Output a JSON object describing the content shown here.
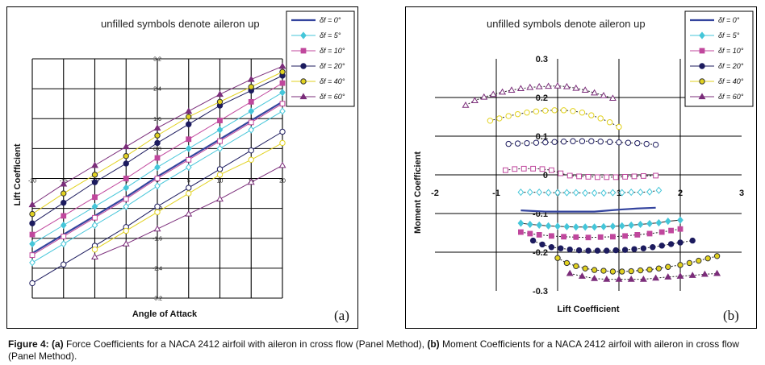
{
  "caption": {
    "lead": "Figure 4:",
    "a_tag": "(a)",
    "a_text": " Force Coefficients for a NACA 2412 airfoil with aileron in cross flow (Panel Method), ",
    "b_tag": "(b)",
    "b_text": " Moment Coefficients for a NACA 2412 airfoil with aileron in cross flow (Panel Method)."
  },
  "legend_colors": {
    "δf = 0°": "#34449e",
    "δf = 5°": "#45c6d9",
    "δf = 10°": "#c0479d",
    "δf = 20°": "#1c1b5e",
    "δf = 40°": "#e2d21f",
    "δf = 60°": "#7b2d7a"
  },
  "chart_data": [
    {
      "type": "scatter",
      "panel_label": "(a)",
      "note": "unfilled symbols denote aileron up",
      "xlabel": "Angle of Attack",
      "ylabel": "Lift Coefficient",
      "xlim": [
        -20,
        20
      ],
      "ylim": [
        -3.2,
        3.2
      ],
      "x_ticks": [
        "-20",
        "-15",
        "-10",
        "-5",
        "0",
        "5",
        "10",
        "15",
        "20"
      ],
      "y_ticks": [
        "3.2",
        "2.4",
        "1.6",
        "0.8",
        "0",
        "-0.8",
        "-1.6",
        "-2.4",
        "-3.2"
      ],
      "legend": [
        "δf = 0°",
        "δf = 5°",
        "δf = 10°",
        "δf = 20°",
        "δf = 40°",
        "δf = 60°"
      ],
      "x": [
        -20,
        -15,
        -10,
        -5,
        0,
        5,
        10,
        15,
        20
      ],
      "series": [
        {
          "name": "δf = 0°",
          "filled": true,
          "marker": "line",
          "values": [
            -2.0,
            -1.5,
            -1.0,
            -0.5,
            0.05,
            0.55,
            1.05,
            1.55,
            2.05
          ]
        },
        {
          "name": "δf = 5°",
          "filled": true,
          "marker": "diamond",
          "values": [
            -1.75,
            -1.25,
            -0.75,
            -0.25,
            0.3,
            0.8,
            1.3,
            1.8,
            2.3
          ]
        },
        {
          "name": "δf = 10°",
          "filled": true,
          "marker": "square",
          "values": [
            -1.5,
            -1.0,
            -0.5,
            0.0,
            0.55,
            1.05,
            1.55,
            2.05,
            2.55
          ]
        },
        {
          "name": "δf = 20°",
          "filled": true,
          "marker": "circle",
          "values": [
            -1.2,
            -0.65,
            -0.1,
            0.4,
            0.95,
            1.45,
            1.95,
            2.35,
            2.75
          ]
        },
        {
          "name": "δf = 40°",
          "filled": true,
          "marker": "circle",
          "values": [
            -0.95,
            -0.4,
            0.1,
            0.6,
            1.15,
            1.65,
            2.05,
            2.45,
            2.85
          ]
        },
        {
          "name": "δf = 60°",
          "filled": true,
          "marker": "triangle",
          "values": [
            -0.7,
            -0.15,
            0.35,
            0.85,
            1.35,
            1.8,
            2.25,
            2.65,
            3.0
          ]
        },
        {
          "name": "δf = 5° (up)",
          "filled": false,
          "marker": "diamond",
          "values": [
            -2.25,
            -1.75,
            -1.25,
            -0.75,
            -0.2,
            0.3,
            0.8,
            1.3,
            1.8
          ]
        },
        {
          "name": "δf = 10° (up)",
          "filled": false,
          "marker": "square",
          "values": [
            -2.05,
            -1.55,
            -1.05,
            -0.55,
            0.0,
            0.5,
            1.0,
            1.5,
            2.0
          ]
        },
        {
          "name": "δf = 20° (up)",
          "filled": false,
          "marker": "circle",
          "values": [
            -2.8,
            -2.3,
            -1.8,
            -1.3,
            -0.75,
            -0.25,
            0.25,
            0.75,
            1.25
          ]
        },
        {
          "name": "δf = 40° (up)",
          "filled": false,
          "marker": "circle",
          "values": [
            null,
            null,
            -1.9,
            -1.4,
            -0.9,
            -0.4,
            0.1,
            0.5,
            0.95
          ]
        },
        {
          "name": "δf = 60° (up)",
          "filled": false,
          "marker": "triangle",
          "values": [
            null,
            null,
            -2.1,
            -1.75,
            -1.35,
            -0.95,
            -0.55,
            -0.1,
            0.35
          ]
        }
      ]
    },
    {
      "type": "scatter",
      "panel_label": "(b)",
      "note": "unfilled symbols denote aileron up",
      "xlabel": "Lift Coefficient",
      "ylabel": "Moment Coefficient",
      "xlim": [
        -2,
        3
      ],
      "ylim": [
        -0.3,
        0.3
      ],
      "x_ticks": [
        "-2",
        "-1",
        "0",
        "1",
        "2",
        "3"
      ],
      "y_ticks": [
        "0.3",
        "0.2",
        "0.1",
        "0",
        "-0.1",
        "-0.2",
        "-0.3"
      ],
      "legend": [
        "δf = 0°",
        "δf = 5°",
        "δf = 10°",
        "δf = 20°",
        "δf = 40°",
        "δf = 60°"
      ],
      "series": [
        {
          "name": "δf = 0°",
          "filled": true,
          "marker": "line",
          "x": [
            -0.6,
            -0.2,
            0.2,
            0.6,
            1.0,
            1.3,
            1.6
          ],
          "y": [
            -0.092,
            -0.095,
            -0.095,
            -0.095,
            -0.09,
            -0.087,
            -0.085
          ]
        },
        {
          "name": "δf = 5°",
          "filled": true,
          "marker": "diamond",
          "x": [
            -0.6,
            -0.45,
            -0.3,
            -0.15,
            0.0,
            0.15,
            0.3,
            0.45,
            0.6,
            0.75,
            0.9,
            1.05,
            1.2,
            1.35,
            1.5,
            1.65,
            1.8,
            2.0
          ],
          "y": [
            -0.125,
            -0.128,
            -0.13,
            -0.132,
            -0.133,
            -0.134,
            -0.135,
            -0.135,
            -0.135,
            -0.134,
            -0.133,
            -0.132,
            -0.13,
            -0.128,
            -0.126,
            -0.124,
            -0.12,
            -0.117
          ]
        },
        {
          "name": "δf = 10°",
          "filled": true,
          "marker": "square",
          "x": [
            -0.6,
            -0.45,
            -0.3,
            -0.1,
            0.1,
            0.3,
            0.5,
            0.7,
            0.9,
            1.1,
            1.3,
            1.5,
            1.7,
            1.85,
            2.0
          ],
          "y": [
            -0.148,
            -0.152,
            -0.155,
            -0.158,
            -0.16,
            -0.161,
            -0.162,
            -0.161,
            -0.16,
            -0.158,
            -0.155,
            -0.152,
            -0.148,
            -0.144,
            -0.14
          ]
        },
        {
          "name": "δf = 20°",
          "filled": true,
          "marker": "circle",
          "x": [
            -0.4,
            -0.25,
            -0.1,
            0.05,
            0.2,
            0.35,
            0.5,
            0.65,
            0.8,
            0.95,
            1.1,
            1.25,
            1.4,
            1.55,
            1.7,
            1.85,
            2.0,
            2.2
          ],
          "y": [
            -0.17,
            -0.18,
            -0.187,
            -0.19,
            -0.193,
            -0.195,
            -0.196,
            -0.196,
            -0.196,
            -0.195,
            -0.194,
            -0.192,
            -0.19,
            -0.187,
            -0.183,
            -0.179,
            -0.175,
            -0.17
          ]
        },
        {
          "name": "δf = 40°",
          "filled": true,
          "marker": "circle",
          "x": [
            0.0,
            0.15,
            0.3,
            0.45,
            0.6,
            0.75,
            0.9,
            1.05,
            1.2,
            1.35,
            1.5,
            1.65,
            1.8,
            2.0,
            2.15,
            2.3,
            2.45,
            2.6
          ],
          "y": [
            -0.215,
            -0.228,
            -0.236,
            -0.242,
            -0.246,
            -0.248,
            -0.25,
            -0.25,
            -0.249,
            -0.247,
            -0.245,
            -0.242,
            -0.238,
            -0.233,
            -0.228,
            -0.222,
            -0.216,
            -0.21
          ]
        },
        {
          "name": "δf = 60°",
          "filled": true,
          "marker": "triangle",
          "x": [
            0.2,
            0.4,
            0.6,
            0.8,
            1.0,
            1.2,
            1.4,
            1.6,
            1.8,
            2.0,
            2.2,
            2.4,
            2.6
          ],
          "y": [
            -0.255,
            -0.262,
            -0.268,
            -0.27,
            -0.27,
            -0.27,
            -0.27,
            -0.267,
            -0.264,
            -0.262,
            -0.26,
            -0.257,
            -0.255
          ]
        },
        {
          "name": "δf = 5° (up)",
          "filled": false,
          "marker": "diamond",
          "x": [
            -0.6,
            -0.45,
            -0.3,
            -0.15,
            0.0,
            0.15,
            0.3,
            0.45,
            0.6,
            0.75,
            0.9,
            1.05,
            1.2,
            1.35,
            1.5,
            1.65
          ],
          "y": [
            -0.045,
            -0.045,
            -0.045,
            -0.046,
            -0.046,
            -0.046,
            -0.046,
            -0.047,
            -0.047,
            -0.047,
            -0.046,
            -0.046,
            -0.045,
            -0.045,
            -0.044,
            -0.04
          ]
        },
        {
          "name": "δf = 10° (up)",
          "filled": false,
          "marker": "square",
          "x": [
            -0.85,
            -0.7,
            -0.55,
            -0.4,
            -0.25,
            -0.1,
            0.05,
            0.2,
            0.35,
            0.5,
            0.65,
            0.8,
            0.95,
            1.1,
            1.25,
            1.4,
            1.6
          ],
          "y": [
            0.012,
            0.015,
            0.016,
            0.016,
            0.015,
            0.012,
            0.004,
            -0.002,
            -0.004,
            -0.005,
            -0.006,
            -0.006,
            -0.006,
            -0.005,
            -0.004,
            -0.003,
            -0.002
          ]
        },
        {
          "name": "δf = 20° (up)",
          "filled": false,
          "marker": "circle",
          "x": [
            -0.8,
            -0.65,
            -0.5,
            -0.35,
            -0.2,
            -0.05,
            0.1,
            0.25,
            0.4,
            0.55,
            0.7,
            0.85,
            1.0,
            1.15,
            1.3,
            1.45,
            1.6
          ],
          "y": [
            0.08,
            0.081,
            0.082,
            0.083,
            0.084,
            0.085,
            0.086,
            0.087,
            0.087,
            0.087,
            0.086,
            0.085,
            0.084,
            0.083,
            0.082,
            0.08,
            0.078
          ]
        },
        {
          "name": "δf = 40° (up)",
          "filled": false,
          "marker": "circle",
          "x": [
            -1.1,
            -0.95,
            -0.8,
            -0.65,
            -0.5,
            -0.35,
            -0.2,
            -0.05,
            0.1,
            0.25,
            0.4,
            0.55,
            0.7,
            0.85,
            1.0
          ],
          "y": [
            0.14,
            0.146,
            0.152,
            0.157,
            0.161,
            0.164,
            0.166,
            0.167,
            0.167,
            0.165,
            0.161,
            0.154,
            0.146,
            0.136,
            0.124
          ]
        },
        {
          "name": "δf = 60° (up)",
          "filled": false,
          "marker": "triangle",
          "x": [
            -1.5,
            -1.35,
            -1.2,
            -1.05,
            -0.9,
            -0.75,
            -0.6,
            -0.45,
            -0.3,
            -0.15,
            0.0,
            0.15,
            0.3,
            0.45,
            0.6,
            0.75,
            0.9
          ],
          "y": [
            0.18,
            0.192,
            0.201,
            0.208,
            0.214,
            0.219,
            0.223,
            0.226,
            0.228,
            0.229,
            0.23,
            0.228,
            0.224,
            0.219,
            0.212,
            0.205,
            0.198
          ]
        }
      ]
    }
  ]
}
